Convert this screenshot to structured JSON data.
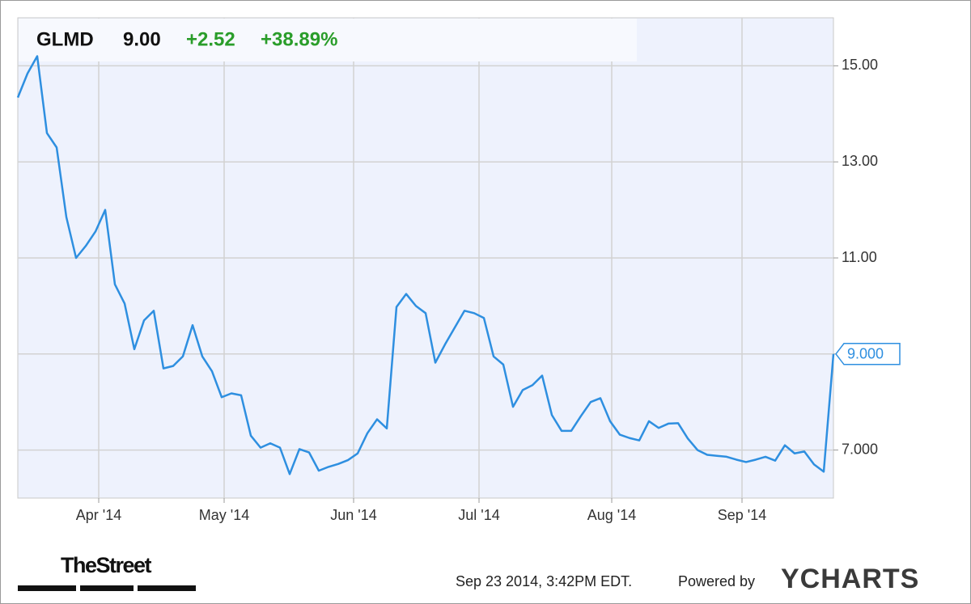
{
  "chart_data": {
    "type": "line",
    "title": "GLMD",
    "price": "9.00",
    "change": "+2.52",
    "change_percent": "+38.89%",
    "timestamp": "Sep 23 2014, 3:42PM EDT.",
    "powered_by": "Powered by",
    "brand": "YCHARTS",
    "publisher": "TheStreet",
    "xtick_labels": [
      "Apr '14",
      "May '14",
      "Jun '14",
      "Jul '14",
      "Aug '14",
      "Sep '14"
    ],
    "series": [
      {
        "color": "#2e8fe0",
        "values": [
          14.34,
          14.84,
          15.2,
          13.6,
          13.3,
          11.85,
          11.0,
          11.25,
          11.55,
          12.0,
          10.45,
          10.05,
          9.1,
          9.7,
          9.9,
          8.7,
          8.75,
          8.95,
          9.6,
          8.95,
          8.64,
          8.1,
          8.18,
          8.14,
          7.3,
          7.05,
          7.14,
          7.05,
          6.5,
          7.02,
          6.95,
          6.57,
          6.65,
          6.71,
          6.79,
          6.93,
          7.35,
          7.64,
          7.45,
          9.98,
          10.25,
          10.0,
          9.85,
          8.82,
          9.2,
          9.55,
          9.9,
          9.85,
          9.75,
          8.95,
          8.78,
          7.9,
          8.25,
          8.35,
          8.55,
          7.73,
          7.4,
          7.4,
          7.71,
          8.0,
          8.08,
          7.6,
          7.32,
          7.25,
          7.2,
          7.6,
          7.46,
          7.55,
          7.56,
          7.24,
          7.0,
          6.9,
          6.88,
          6.86,
          6.8,
          6.75,
          6.8,
          6.86,
          6.78,
          7.1,
          6.93,
          6.97,
          6.7,
          6.55,
          9.0
        ]
      }
    ],
    "last_value_label": "9.000",
    "ylim": [
      6.0,
      16.0
    ],
    "yticks": [
      {
        "value": 7,
        "label": "7.000"
      },
      9,
      {
        "value": 11,
        "label": "11.00"
      },
      {
        "value": 13,
        "label": "13.00"
      },
      {
        "value": 15,
        "label": "15.00"
      }
    ],
    "grid": true
  }
}
